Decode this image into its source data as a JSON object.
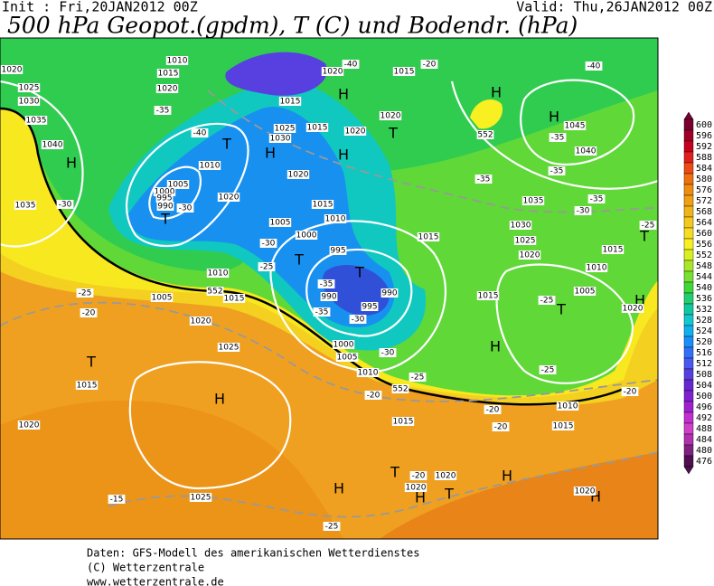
{
  "header": {
    "init": "Init : Fri,20JAN2012 00Z",
    "valid": "Valid: Thu,26JAN2012 00Z",
    "title": "500 hPa Geopot.(gpdm), T (C) und Bodendr. (hPa)"
  },
  "map": {
    "labels": [
      "H",
      "T",
      "H",
      "T",
      "H",
      "H",
      "T",
      "T",
      "T",
      "H",
      "H",
      "T",
      "H",
      "T",
      "T",
      "H",
      "H",
      "H",
      "H",
      "T",
      "H",
      "H",
      "T",
      "1020",
      "1025",
      "1030",
      "1035",
      "1040",
      "1035",
      "1010",
      "1015",
      "1020",
      "1025",
      "1030",
      "1010",
      "1005",
      "1000",
      "995",
      "990",
      "1020",
      "1020",
      "1015",
      "1015",
      "1020",
      "1020",
      "1015",
      "1020",
      "1015",
      "1010",
      "1005",
      "1000",
      "995",
      "990",
      "995",
      "990",
      "1000",
      "1005",
      "1010",
      "1015",
      "1015",
      "1035",
      "1030",
      "1025",
      "1020",
      "1045",
      "1040",
      "1015",
      "1010",
      "1005",
      "1020",
      "1015",
      "1010",
      "1015",
      "1005",
      "1010",
      "1015",
      "1020",
      "1025",
      "1015",
      "1020",
      "1025",
      "1020",
      "1020",
      "1020",
      "-40",
      "-35",
      "-40",
      "-30",
      "-30",
      "-35",
      "-35",
      "-35",
      "-35",
      "-30",
      "-25",
      "-30",
      "-25",
      "-35",
      "-35",
      "-30",
      "-30",
      "-25",
      "-25",
      "-20",
      "-25",
      "-25",
      "-20",
      "-20",
      "-20",
      "-20",
      "-20",
      "-15",
      "-25",
      "-40",
      "-20",
      "552",
      "552",
      "552"
    ]
  },
  "colorbar": {
    "ticks": [
      600,
      596,
      592,
      588,
      584,
      580,
      576,
      572,
      568,
      564,
      560,
      556,
      552,
      548,
      544,
      540,
      536,
      532,
      528,
      524,
      520,
      516,
      512,
      508,
      504,
      500,
      496,
      492,
      488,
      484,
      480,
      476
    ],
    "colors": [
      "#7a0030",
      "#a00028",
      "#c8001e",
      "#e0201a",
      "#f04a14",
      "#f07010",
      "#f08c10",
      "#f0a010",
      "#f0b418",
      "#f4c81c",
      "#f8dc20",
      "#f8f020",
      "#d8f020",
      "#a8e828",
      "#78e030",
      "#40d838",
      "#20d070",
      "#10c8a0",
      "#10c8d0",
      "#10b0f0",
      "#1890f8",
      "#3070f8",
      "#4858f0",
      "#5840e0",
      "#6828d0",
      "#8020d0",
      "#a020d0",
      "#c030d0",
      "#d040c8",
      "#b030b0",
      "#802080",
      "#501050"
    ]
  },
  "footer": {
    "lines": [
      "Daten: GFS-Modell des amerikanischen Wetterdienstes",
      "(C) Wetterzentrale",
      "www.wetterzentrale.de"
    ]
  }
}
